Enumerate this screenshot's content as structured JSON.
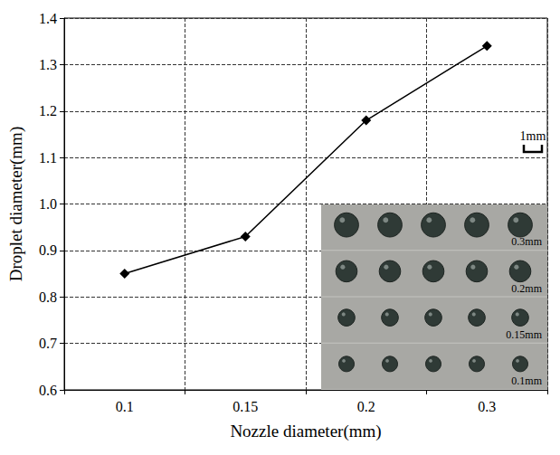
{
  "chart_data": {
    "type": "line",
    "x_label": "Nozzle diameter(mm)",
    "y_label": "Droplet diameter(mm)",
    "categories": [
      "0.1",
      "0.15",
      "0.2",
      "0.3"
    ],
    "values": [
      0.85,
      0.93,
      1.18,
      1.34
    ],
    "color": "#000000",
    "marker": "diamond",
    "ylim": [
      0.6,
      1.4
    ],
    "yticks": [
      0.6,
      0.7,
      0.8,
      0.9,
      {
        "value": 1,
        "label": "1.0"
      },
      1.1,
      1.2,
      1.3,
      1.4
    ],
    "grid": true,
    "annotations": [
      "1mm",
      "0.3mm",
      "0.2mm",
      "0.15mm",
      "0.1mm"
    ]
  }
}
